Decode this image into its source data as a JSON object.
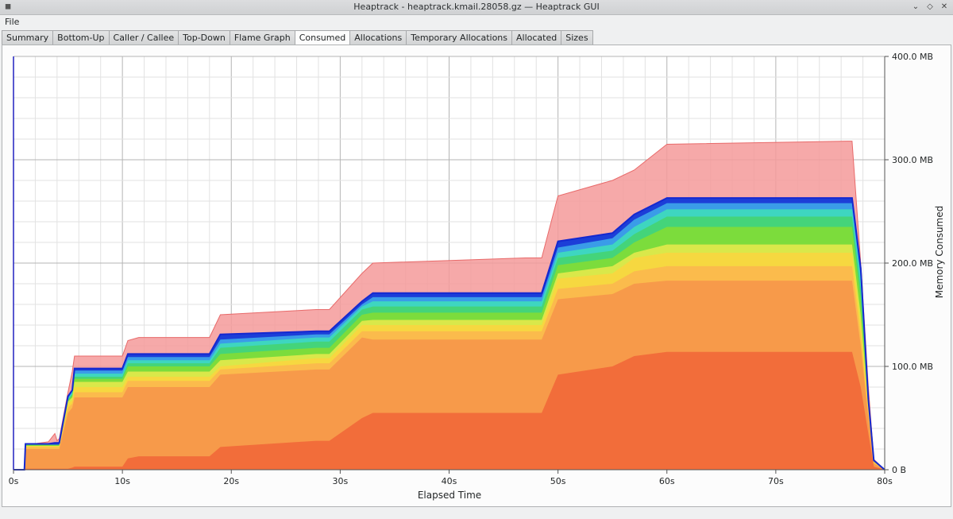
{
  "window": {
    "title": "Heaptrack - heaptrack.kmail.28058.gz — Heaptrack GUI",
    "controls": [
      "chevron-down-icon",
      "diamond-icon",
      "close-icon"
    ]
  },
  "menubar": {
    "file": "File"
  },
  "tabs": [
    {
      "label": "Summary",
      "active": false
    },
    {
      "label": "Bottom-Up",
      "active": false
    },
    {
      "label": "Caller / Callee",
      "active": false
    },
    {
      "label": "Top-Down",
      "active": false
    },
    {
      "label": "Flame Graph",
      "active": false
    },
    {
      "label": "Consumed",
      "active": true
    },
    {
      "label": "Allocations",
      "active": false
    },
    {
      "label": "Temporary Allocations",
      "active": false
    },
    {
      "label": "Allocated",
      "active": false
    },
    {
      "label": "Sizes",
      "active": false
    }
  ],
  "chart_data": {
    "type": "area",
    "stacked": true,
    "xlabel": "Elapsed Time",
    "ylabel": "Memory Consumed",
    "xlim": [
      0,
      80
    ],
    "ylim": [
      0,
      400
    ],
    "x_ticks": [
      "0s",
      "10s",
      "20s",
      "30s",
      "40s",
      "50s",
      "60s",
      "70s",
      "80s"
    ],
    "y_ticks": [
      "0 B",
      "100.0 MB",
      "200.0 MB",
      "300.0 MB",
      "400.0 MB"
    ],
    "grid": true,
    "y_axis_side": "right",
    "x": [
      0,
      1.0,
      1.1,
      3.2,
      3.8,
      4.0,
      4.2,
      5.0,
      5.4,
      5.6,
      10,
      10.5,
      11.5,
      18,
      19,
      27.8,
      29,
      32,
      33,
      47,
      48.5,
      50,
      55,
      57,
      60,
      76.5,
      77,
      77.8,
      78.5,
      79,
      80
    ],
    "colors": {
      "total": "#f49a9a",
      "layers": [
        "#f26d3a",
        "#f79a4a",
        "#fbbb4c",
        "#f6d840",
        "#d9e84a",
        "#7cdc3c",
        "#44d47a",
        "#3ed6c0",
        "#3a9ce8",
        "#1c3ed8"
      ]
    },
    "series": [
      {
        "name": "total",
        "values": [
          0,
          0,
          24,
          27,
          35,
          28,
          30,
          75,
          95,
          110,
          110,
          125,
          128,
          128,
          150,
          155,
          155,
          190,
          200,
          205,
          205,
          265,
          280,
          290,
          315,
          318,
          318,
          200,
          80,
          10,
          0
        ]
      },
      {
        "name": "layer-1",
        "values": [
          0,
          0,
          1,
          1,
          1,
          1,
          1,
          1,
          2,
          3,
          3,
          11,
          13,
          13,
          22,
          28,
          28,
          50,
          55,
          55,
          55,
          92,
          100,
          110,
          114,
          114,
          114,
          80,
          35,
          3,
          0
        ]
      },
      {
        "name": "layer-2",
        "values": [
          0,
          0,
          20,
          20,
          20,
          20,
          20,
          55,
          60,
          70,
          70,
          80,
          80,
          80,
          92,
          97,
          97,
          128,
          126,
          126,
          126,
          165,
          170,
          180,
          183,
          183,
          183,
          120,
          50,
          6,
          0
        ]
      },
      {
        "name": "layer-3",
        "values": [
          0,
          0,
          22,
          22,
          22,
          22,
          22,
          60,
          64,
          75,
          75,
          86,
          86,
          86,
          97,
          103,
          103,
          134,
          134,
          134,
          134,
          175,
          180,
          192,
          197,
          197,
          197,
          130,
          56,
          7,
          0
        ]
      },
      {
        "name": "layer-4",
        "values": [
          0,
          0,
          23,
          23,
          23,
          23,
          23,
          64,
          67,
          80,
          80,
          90,
          90,
          90,
          100,
          108,
          108,
          140,
          140,
          140,
          140,
          185,
          190,
          205,
          210,
          210,
          210,
          140,
          60,
          8,
          0
        ]
      },
      {
        "name": "layer-5",
        "values": [
          0,
          0,
          23,
          23,
          23,
          23,
          23,
          66,
          70,
          85,
          85,
          95,
          95,
          95,
          106,
          112,
          112,
          144,
          145,
          145,
          145,
          190,
          197,
          210,
          218,
          218,
          218,
          150,
          62,
          8,
          0
        ]
      },
      {
        "name": "layer-6",
        "values": [
          0,
          0,
          24,
          24,
          24,
          24,
          24,
          67,
          72,
          88,
          88,
          100,
          100,
          100,
          112,
          118,
          118,
          150,
          152,
          152,
          152,
          198,
          205,
          220,
          235,
          235,
          235,
          165,
          65,
          9,
          0
        ]
      },
      {
        "name": "layer-7",
        "values": [
          0,
          0,
          24,
          24,
          24,
          24,
          24,
          68,
          73,
          90,
          90,
          103,
          103,
          103,
          118,
          124,
          124,
          155,
          158,
          158,
          158,
          205,
          212,
          228,
          245,
          245,
          245,
          175,
          66,
          9,
          0
        ]
      },
      {
        "name": "layer-8",
        "values": [
          0,
          0,
          24,
          24,
          24,
          24,
          24,
          69,
          75,
          93,
          93,
          106,
          106,
          106,
          122,
          128,
          128,
          158,
          163,
          163,
          163,
          210,
          218,
          235,
          252,
          252,
          252,
          185,
          67,
          9,
          0
        ]
      },
      {
        "name": "layer-9",
        "values": [
          0,
          0,
          24,
          24,
          24,
          24,
          24,
          70,
          76,
          96,
          96,
          109,
          109,
          109,
          126,
          131,
          131,
          160,
          167,
          167,
          167,
          215,
          224,
          242,
          258,
          258,
          258,
          190,
          68,
          9,
          0
        ]
      },
      {
        "name": "layer-10",
        "values": [
          0,
          0,
          25,
          25,
          26,
          26,
          26,
          71,
          77,
          98,
          98,
          112,
          112,
          112,
          131,
          134,
          134,
          163,
          171,
          171,
          171,
          221,
          229,
          247,
          263,
          263,
          263,
          195,
          68,
          9,
          0
        ]
      }
    ]
  }
}
